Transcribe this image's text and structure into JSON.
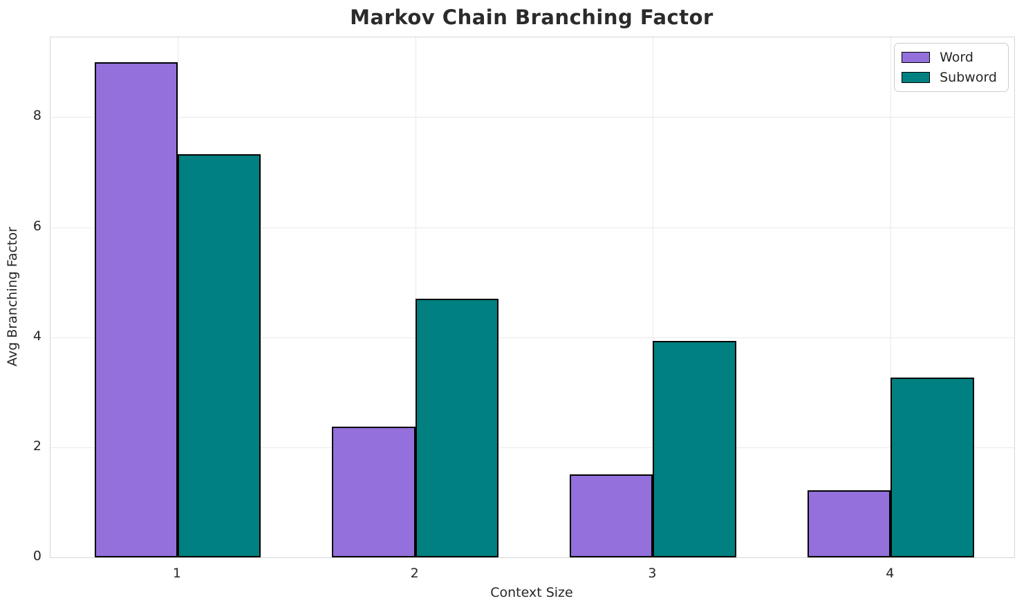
{
  "chart_data": {
    "type": "bar",
    "title": "Markov Chain Branching Factor",
    "xlabel": "Context Size",
    "ylabel": "Avg Branching Factor",
    "categories": [
      "1",
      "2",
      "3",
      "4"
    ],
    "series": [
      {
        "name": "Word",
        "color": "#9370DB",
        "values": [
          9.0,
          2.37,
          1.51,
          1.22
        ]
      },
      {
        "name": "Subword",
        "color": "#008080",
        "values": [
          7.33,
          4.7,
          3.93,
          3.27
        ]
      }
    ],
    "bar_edge_color": "#000000",
    "bar_width": 0.35,
    "ylim": [
      0,
      9.45
    ],
    "yticks": [
      0,
      2,
      4,
      6,
      8
    ],
    "xlim": [
      -0.535,
      3.52
    ],
    "grid": true,
    "legend_position": "upper right",
    "colors": {
      "background": "#ffffff",
      "grid": "#e9e9e9",
      "spine": "#d5d5d5",
      "text": "#262626",
      "title": "#2b2b2b"
    }
  }
}
